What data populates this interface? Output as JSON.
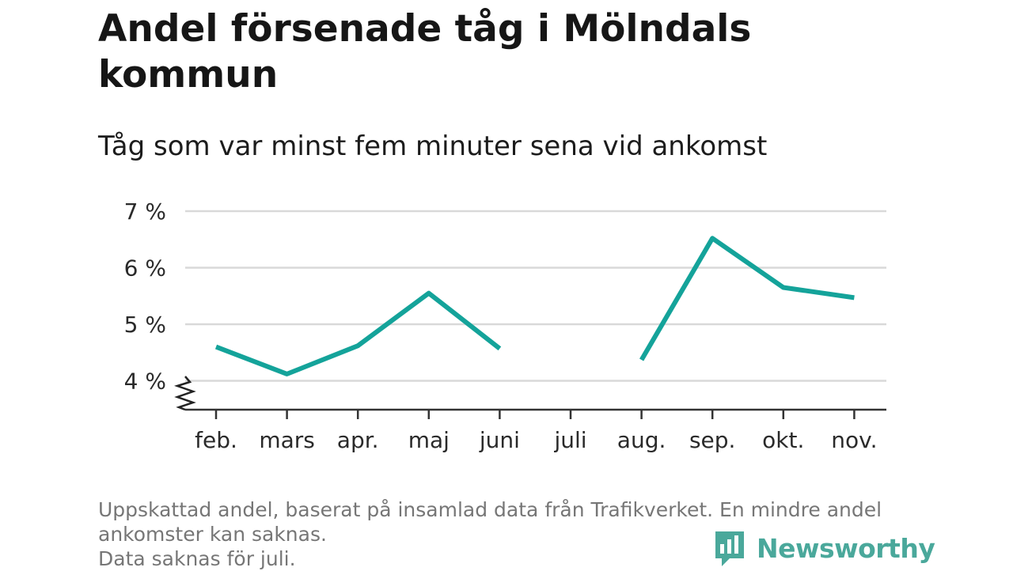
{
  "title": "Andel försenade tåg i Mölndals kommun",
  "subtitle": "Tåg som var minst fem minuter sena vid ankomst",
  "footnote": {
    "line1": "Uppskattad andel, baserat på insamlad data från Trafikverket. En mindre andel ankomster kan saknas.",
    "line2": "Data saknas för juli."
  },
  "brand": {
    "name": "Newsworthy",
    "color": "#4aa89b"
  },
  "chart_data": {
    "type": "line",
    "categories": [
      "feb.",
      "mars",
      "apr.",
      "maj",
      "juni",
      "juli",
      "aug.",
      "sep.",
      "okt.",
      "nov."
    ],
    "values": [
      4.6,
      4.12,
      4.62,
      5.55,
      4.57,
      null,
      4.37,
      6.52,
      5.65,
      5.47
    ],
    "ylim": [
      3.5,
      7
    ],
    "yticks": [
      4,
      5,
      6,
      7
    ],
    "ytick_labels": [
      "4 %",
      "5 %",
      "6 %",
      "7 %"
    ],
    "y_axis_break": true,
    "line_color": "#14a39a",
    "grid": true
  }
}
